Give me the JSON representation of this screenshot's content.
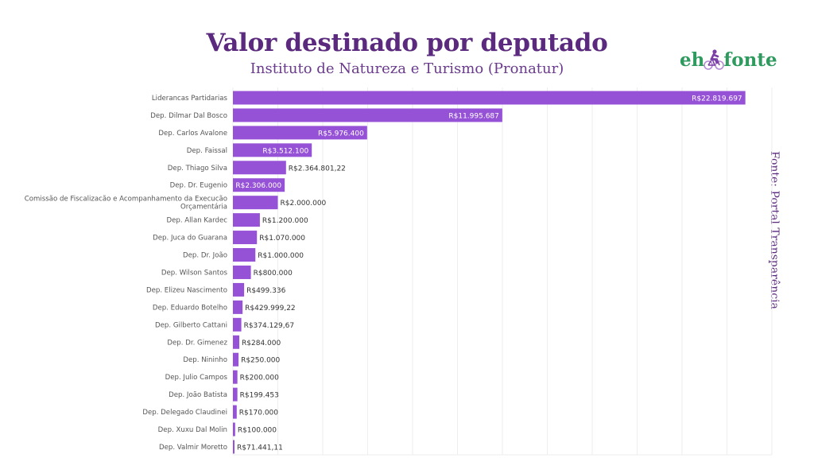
{
  "header": {
    "title": "Valor destinado por deputado",
    "subtitle": "Instituto de Natureza e Turismo (Pronatur)"
  },
  "logo": {
    "left_text": "eh",
    "right_text": "fonte",
    "icon": "cyclist-icon",
    "text_color": "#2e9a5e",
    "icon_color": "#7a3fa6"
  },
  "source_note": "Fonte: Portal Transparência",
  "colors": {
    "bar": "#9652d6",
    "title": "#5b2a7e",
    "label_inside": "#ffffff",
    "label_outside": "#333333",
    "grid": "#eeeeee"
  },
  "chart_data": {
    "type": "bar",
    "orientation": "horizontal",
    "title": "Valor destinado por deputado",
    "subtitle": "Instituto de Natureza e Turismo (Pronatur)",
    "xlabel": "",
    "ylabel": "",
    "xlim": [
      0,
      24000000
    ],
    "grid_step": 2000000,
    "grid": true,
    "legend": "none",
    "categories": [
      "Liderancas Partidarias",
      "Dep. Dilmar Dal Bosco",
      "Dep. Carlos Avalone",
      "Dep. Faissal",
      "Dep. Thiago Silva",
      "Dep. Dr. Eugenio",
      "Comissão de Fiscalizacão e Acompanhamento da Execucão Orçamentária",
      "Dep. Allan Kardec",
      "Dep. Juca do Guarana",
      "Dep. Dr. João",
      "Dep. Wilson Santos",
      "Dep. Elizeu Nascimento",
      "Dep. Eduardo Botelho",
      "Dep. Gilberto Cattani",
      "Dep. Dr. Gimenez",
      "Dep. Nininho",
      "Dep. Julio Campos",
      "Dep. João Batista",
      "Dep. Delegado Claudinei",
      "Dep. Xuxu Dal Molin",
      "Dep. Valmir Moretto"
    ],
    "values": [
      22819697,
      11995687,
      5976400,
      3512100,
      2364801.22,
      2306000,
      2000000,
      1200000,
      1070000,
      1000000,
      800000,
      499336,
      429999.22,
      374129.67,
      284000,
      250000,
      200000,
      199453,
      170000,
      100000,
      71441.11
    ],
    "data_labels": [
      "R$22.819.697",
      "R$11.995.687",
      "R$5.976.400",
      "R$3.512.100",
      "R$2.364.801,22",
      "R$2.306.000",
      "R$2.000.000",
      "R$1.200.000",
      "R$1.070.000",
      "R$1.000.000",
      "R$800.000",
      "R$499.336",
      "R$429.999,22",
      "R$374.129,67",
      "R$284.000",
      "R$250.000",
      "R$200.000",
      "R$199.453",
      "R$170.000",
      "R$100.000",
      "R$71.441,11"
    ],
    "label_inside": [
      true,
      true,
      true,
      true,
      false,
      true,
      false,
      false,
      false,
      false,
      false,
      false,
      false,
      false,
      false,
      false,
      false,
      false,
      false,
      false,
      false
    ]
  }
}
